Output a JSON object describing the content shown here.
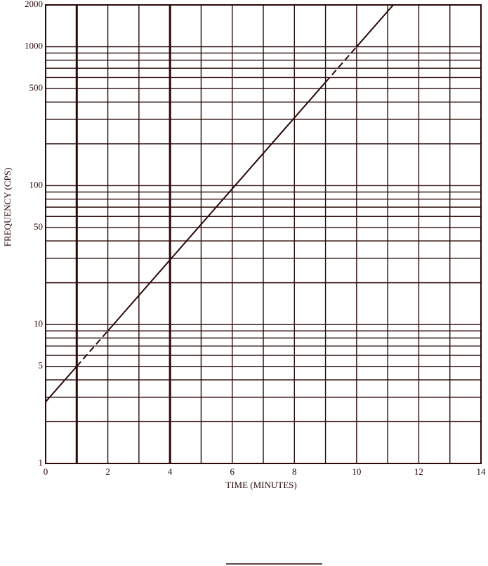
{
  "chart_data": {
    "type": "line",
    "xlabel": "TIME (MINUTES)",
    "ylabel": "FREQUENCY (CPS)",
    "xlim": [
      0,
      14
    ],
    "xticks": [
      0,
      2,
      4,
      6,
      8,
      10,
      12,
      14
    ],
    "xgrid": [
      0,
      1,
      2,
      3,
      4,
      5,
      6,
      7,
      8,
      9,
      10,
      11,
      12,
      13,
      14
    ],
    "xgrid_bold": [
      1,
      4
    ],
    "ylim": [
      1,
      2000
    ],
    "yscale": "log",
    "yticks": [
      1,
      5,
      10,
      50,
      100,
      500,
      1000,
      2000
    ],
    "ygrid": [
      1,
      2,
      3,
      4,
      5,
      6,
      7,
      8,
      9,
      10,
      20,
      30,
      40,
      50,
      60,
      70,
      80,
      90,
      100,
      200,
      300,
      400,
      500,
      600,
      700,
      800,
      900,
      1000,
      2000
    ],
    "color": "#2a0808",
    "series": [
      {
        "x": [
          0,
          1
        ],
        "values": [
          2.78,
          5
        ],
        "dash": false
      },
      {
        "x": [
          1,
          2
        ],
        "values": [
          5,
          9
        ],
        "dash": true
      },
      {
        "x": [
          2,
          9
        ],
        "values": [
          9,
          555
        ],
        "dash": false
      },
      {
        "x": [
          9,
          10
        ],
        "values": [
          555,
          1000
        ],
        "dash": true
      },
      {
        "x": [
          10,
          11.18
        ],
        "values": [
          1000,
          2000
        ],
        "dash": false
      }
    ]
  }
}
